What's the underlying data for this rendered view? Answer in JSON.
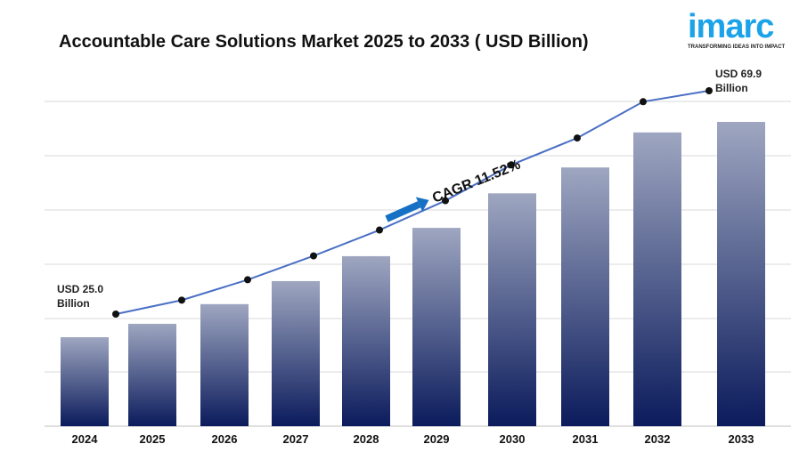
{
  "chart_data": {
    "type": "bar",
    "title": "Accountable Care Solutions Market 2025 to 2033 ( USD Billion)",
    "categories": [
      "2024",
      "2025",
      "2026",
      "2027",
      "2028",
      "2029",
      "2030",
      "2031",
      "2032",
      "2033"
    ],
    "values": [
      25.0,
      27.8,
      31.9,
      36.7,
      41.9,
      47.8,
      55.0,
      60.4,
      67.7,
      69.9
    ],
    "line_overlay": true,
    "grid": true,
    "annotations": {
      "start": "USD 25.0 Billion",
      "end": "USD 69.9 Billion",
      "cagr": "CAGR 11.52%"
    },
    "colors": {
      "bar_top": "#9ea6c0",
      "bar_bottom": "#0b1b5c",
      "line": "#4a6fc4",
      "arrow": "#1670c4"
    }
  },
  "logo": {
    "name": "imarc",
    "tagline": "TRANSFORMING IDEAS INTO IMPACT"
  }
}
